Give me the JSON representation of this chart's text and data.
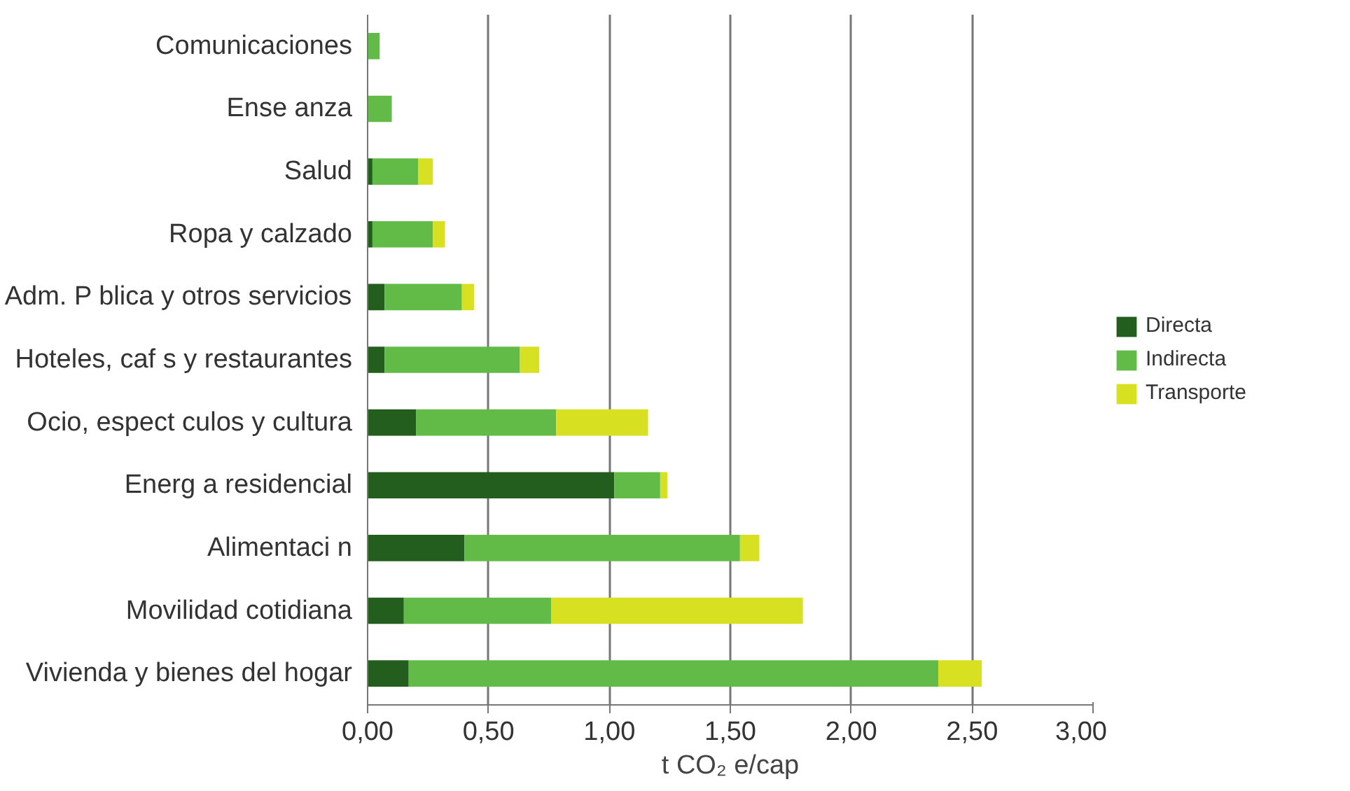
{
  "chart_data": {
    "type": "bar",
    "orientation": "horizontal",
    "stacked": true,
    "categories": [
      "Comunicaciones",
      "Ense anza",
      "Salud",
      "Ropa y calzado",
      "Adm. P blica y otros servicios",
      "Hoteles, caf s y restaurantes",
      "Ocio, espect culos y cultura",
      "Energ a residencial",
      "Alimentaci n",
      "Movilidad cotidiana",
      "Vivienda y bienes del hogar"
    ],
    "series": [
      {
        "name": "Directa",
        "color": "#235e1e",
        "values": [
          0,
          0,
          0.02,
          0.02,
          0.07,
          0.07,
          0.2,
          1.02,
          0.4,
          0.15,
          0.17
        ]
      },
      {
        "name": "Indirecta",
        "color": "#62bb47",
        "values": [
          0.05,
          0.1,
          0.19,
          0.25,
          0.32,
          0.56,
          0.58,
          0.19,
          1.14,
          0.61,
          2.19
        ]
      },
      {
        "name": "Transporte",
        "color": "#d8e022",
        "values": [
          0,
          0,
          0.06,
          0.05,
          0.05,
          0.08,
          0.38,
          0.03,
          0.08,
          1.04,
          0.18
        ]
      }
    ],
    "xlabel": "t CO₂ e/cap",
    "xlim": [
      0,
      3
    ],
    "xticks": [
      {
        "value": 0,
        "label": "0,00"
      },
      {
        "value": 0.5,
        "label": "0,50"
      },
      {
        "value": 1,
        "label": "1,00"
      },
      {
        "value": 1.5,
        "label": "1,50"
      },
      {
        "value": 2,
        "label": "2,00"
      },
      {
        "value": 2.5,
        "label": "2,50"
      },
      {
        "value": 3,
        "label": "3,00"
      }
    ],
    "grid": "x",
    "legend": "right"
  }
}
